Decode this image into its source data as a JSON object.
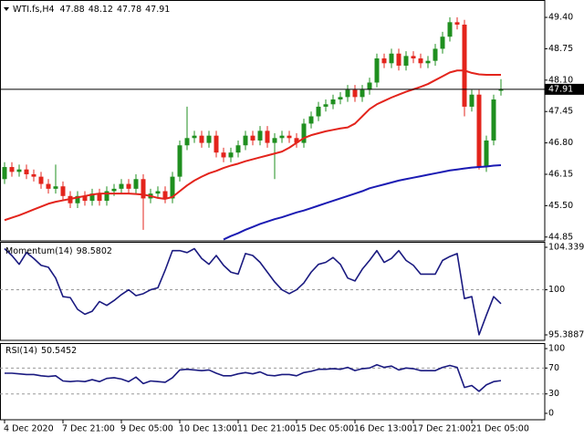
{
  "chart_data": [
    {
      "type": "candlestick",
      "title": "WTI.fs,H4",
      "categories": [
        "4 Dec 2020",
        null,
        null,
        null,
        null,
        null,
        null,
        null,
        "7 Dec 21:00",
        null,
        null,
        null,
        null,
        null,
        null,
        null,
        "9 Dec 05:00",
        null,
        null,
        null,
        null,
        null,
        null,
        null,
        "10 Dec 13:00",
        null,
        null,
        null,
        null,
        null,
        null,
        null,
        "11 Dec 21:00",
        null,
        null,
        null,
        null,
        null,
        null,
        null,
        "15 Dec 05:00",
        null,
        null,
        null,
        null,
        null,
        null,
        null,
        "16 Dec 13:00",
        null,
        null,
        null,
        null,
        null,
        null,
        null,
        "17 Dec 21:00",
        null,
        null,
        null,
        null,
        null,
        null,
        null,
        "21 Dec 05:00",
        null,
        null,
        null,
        null
      ],
      "open": [
        46.05,
        46.3,
        46.2,
        46.25,
        46.15,
        46.1,
        45.95,
        45.85,
        45.9,
        45.7,
        45.55,
        45.7,
        45.6,
        45.75,
        45.6,
        45.8,
        45.85,
        45.95,
        45.85,
        46.05,
        45.65,
        45.75,
        45.8,
        45.65,
        46.1,
        46.75,
        46.9,
        46.95,
        46.8,
        46.95,
        46.6,
        46.5,
        46.6,
        46.75,
        46.95,
        46.85,
        47.05,
        46.8,
        46.9,
        46.95,
        46.9,
        46.8,
        47.2,
        47.35,
        47.55,
        47.6,
        47.7,
        47.75,
        47.9,
        47.75,
        47.9,
        48.05,
        48.55,
        48.45,
        48.65,
        48.4,
        48.6,
        48.55,
        48.45,
        48.5,
        48.75,
        49.0,
        49.3,
        49.25,
        47.55,
        47.8,
        46.3,
        46.85,
        47.88
      ],
      "high": [
        46.4,
        46.4,
        46.35,
        46.35,
        46.25,
        46.2,
        46.05,
        46.35,
        46.0,
        45.8,
        45.8,
        45.8,
        45.85,
        45.85,
        45.9,
        45.95,
        46.05,
        46.05,
        46.15,
        46.15,
        45.85,
        45.9,
        45.9,
        46.2,
        46.85,
        47.55,
        47.05,
        47.05,
        47.05,
        47.05,
        46.7,
        46.7,
        46.85,
        47.05,
        47.05,
        47.15,
        47.15,
        47.0,
        47.05,
        47.05,
        47.0,
        47.3,
        47.45,
        47.65,
        47.7,
        47.8,
        47.85,
        48.0,
        48.0,
        48.0,
        48.15,
        48.65,
        48.65,
        48.75,
        48.75,
        48.7,
        48.7,
        48.65,
        48.6,
        48.85,
        49.1,
        49.4,
        49.4,
        49.35,
        47.9,
        47.9,
        46.95,
        47.8,
        48.12
      ],
      "low": [
        45.95,
        46.1,
        46.1,
        46.05,
        46.0,
        45.85,
        45.75,
        45.75,
        45.6,
        45.45,
        45.45,
        45.5,
        45.5,
        45.5,
        45.5,
        45.7,
        45.75,
        45.75,
        45.75,
        45.0,
        45.55,
        45.65,
        45.55,
        45.55,
        46.0,
        46.65,
        46.8,
        46.7,
        46.7,
        46.5,
        46.4,
        46.4,
        46.5,
        46.65,
        46.75,
        46.75,
        46.7,
        46.05,
        46.8,
        46.8,
        46.7,
        46.7,
        47.1,
        47.25,
        47.45,
        47.5,
        47.6,
        47.65,
        47.65,
        47.65,
        47.8,
        47.95,
        48.35,
        48.35,
        48.3,
        48.3,
        48.45,
        48.35,
        48.35,
        48.4,
        48.65,
        48.9,
        49.15,
        47.35,
        47.45,
        46.25,
        46.2,
        46.75,
        47.78
      ],
      "close": [
        46.3,
        46.2,
        46.25,
        46.15,
        46.1,
        45.95,
        45.85,
        45.9,
        45.7,
        45.55,
        45.7,
        45.6,
        45.75,
        45.6,
        45.8,
        45.85,
        45.95,
        45.85,
        46.05,
        45.65,
        45.75,
        45.8,
        45.65,
        46.1,
        46.75,
        46.9,
        46.95,
        46.8,
        46.95,
        46.6,
        46.5,
        46.6,
        46.75,
        46.95,
        46.85,
        47.05,
        46.8,
        46.9,
        46.95,
        46.9,
        46.8,
        47.2,
        47.35,
        47.55,
        47.6,
        47.7,
        47.75,
        47.9,
        47.75,
        47.9,
        48.05,
        48.55,
        48.45,
        48.65,
        48.4,
        48.6,
        48.55,
        48.45,
        48.5,
        48.75,
        49.0,
        49.3,
        49.25,
        47.55,
        47.8,
        46.3,
        46.85,
        47.7,
        47.91
      ],
      "up_color": "#1f8f1f",
      "down_color": "#e3241c",
      "series": [
        {
          "color": "#e3241c",
          "values": [
            45.2,
            45.25,
            45.3,
            45.36,
            45.42,
            45.48,
            45.54,
            45.58,
            45.61,
            45.64,
            45.67,
            45.7,
            45.73,
            45.75,
            45.75,
            45.75,
            45.75,
            45.75,
            45.74,
            45.73,
            45.7,
            45.66,
            45.64,
            45.68,
            45.8,
            45.92,
            46.02,
            46.1,
            46.17,
            46.22,
            46.28,
            46.33,
            46.37,
            46.42,
            46.46,
            46.5,
            46.54,
            46.58,
            46.62,
            46.7,
            46.8,
            46.9,
            46.96,
            47.0,
            47.04,
            47.07,
            47.1,
            47.12,
            47.2,
            47.35,
            47.5,
            47.6,
            47.67,
            47.74,
            47.8,
            47.86,
            47.91,
            47.96,
            48.02,
            48.1,
            48.18,
            48.26,
            48.3,
            48.3,
            48.25,
            48.22,
            48.21,
            48.21,
            48.21
          ]
        },
        {
          "color": "#1b1bb3",
          "values": [
            null,
            null,
            null,
            null,
            null,
            null,
            null,
            null,
            null,
            null,
            null,
            null,
            null,
            null,
            null,
            null,
            null,
            null,
            null,
            null,
            null,
            null,
            null,
            null,
            null,
            null,
            null,
            null,
            null,
            null,
            44.8,
            44.87,
            44.93,
            45.0,
            45.06,
            45.12,
            45.17,
            45.22,
            45.26,
            45.31,
            45.36,
            45.4,
            45.45,
            45.5,
            45.55,
            45.6,
            45.65,
            45.7,
            45.75,
            45.8,
            45.86,
            45.9,
            45.94,
            45.98,
            46.02,
            46.05,
            46.08,
            46.11,
            46.14,
            46.17,
            46.2,
            46.23,
            46.25,
            46.27,
            46.29,
            46.3,
            46.31,
            46.33,
            46.34
          ]
        }
      ],
      "ylim": [
        44.77,
        49.76
      ],
      "yticks": [
        44.85,
        {
          "value": 45.5,
          "label": "45.50"
        },
        46.15,
        {
          "value": 46.8,
          "label": "46.80"
        },
        47.45,
        {
          "value": 48.1,
          "label": "48.10"
        },
        48.75,
        {
          "value": 49.4,
          "label": "49.40"
        }
      ],
      "current_price_line": true
    },
    {
      "type": "line",
      "title": "Momentum(14)",
      "color": "#1a1a80",
      "values": [
        104.2,
        103.5,
        102.6,
        103.8,
        103.2,
        102.5,
        102.3,
        101.2,
        99.3,
        99.2,
        98.0,
        97.5,
        97.8,
        98.8,
        98.4,
        98.9,
        99.5,
        100.0,
        99.4,
        99.6,
        100.0,
        100.2,
        102.0,
        104.0,
        104.0,
        103.8,
        104.2,
        103.2,
        102.6,
        103.5,
        102.5,
        101.8,
        101.6,
        103.7,
        103.5,
        102.8,
        101.8,
        100.8,
        100.0,
        99.6,
        100.0,
        100.7,
        101.8,
        102.6,
        102.8,
        103.3,
        102.6,
        101.2,
        100.9,
        102.1,
        103.0,
        104.0,
        102.8,
        103.2,
        104.0,
        103.0,
        102.5,
        101.6,
        101.6,
        101.6,
        103.0,
        103.4,
        103.7,
        99.1,
        99.3,
        95.4,
        97.4,
        99.3,
        98.5802
      ],
      "ylim": [
        94.83,
        104.9
      ],
      "yticks": [
        104.3394,
        100,
        95.3887
      ],
      "levels": [
        100
      ]
    },
    {
      "type": "line",
      "title": "RSI(14)",
      "color": "#1a1a80",
      "values": [
        62,
        62,
        61,
        60,
        60,
        58,
        57,
        58,
        50,
        49,
        50,
        49,
        52,
        49,
        54,
        55,
        53,
        49,
        56,
        46,
        50,
        49,
        48,
        55,
        67,
        68,
        67,
        66,
        67,
        62,
        58,
        58,
        61,
        63,
        61,
        64,
        59,
        58,
        60,
        60,
        58,
        63,
        65,
        68,
        68,
        69,
        68,
        71,
        66,
        69,
        70,
        75,
        71,
        73,
        67,
        70,
        69,
        66,
        66,
        66,
        71,
        74,
        71,
        40,
        43,
        34,
        44,
        49,
        50.5452
      ],
      "ylim": [
        -9.9,
        108.5
      ],
      "yticks": [
        100,
        70,
        30,
        0
      ],
      "levels": [
        70,
        30
      ]
    }
  ]
}
